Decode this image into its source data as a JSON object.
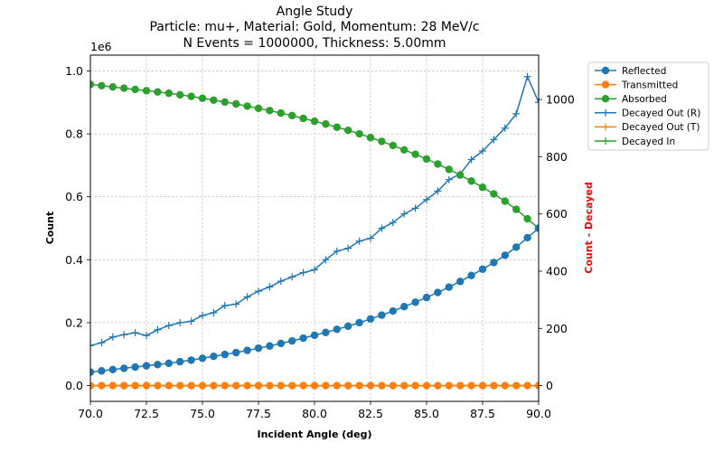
{
  "chart_data": {
    "type": "scatter",
    "title_lines": [
      "Angle Study",
      "Particle: mu+, Material: Gold, Momentum: 28 MeV/c",
      "N Events = 1000000, Thickness: 5.00mm"
    ],
    "xlabel": "Incident Angle (deg)",
    "ylabel": "Count",
    "ylabel_right": "Count - Decayed",
    "ylabel_right_color": "#ff0000",
    "y_offset_label": "1e6",
    "xlim": [
      70.0,
      90.0
    ],
    "ylim": [
      -0.05,
      1.05
    ],
    "ylim_right": [
      -55,
      1155
    ],
    "x_ticks": [
      "70.0",
      "72.5",
      "75.0",
      "77.5",
      "80.0",
      "82.5",
      "85.0",
      "87.5",
      "90.0"
    ],
    "y_ticks": [
      "0.0",
      "0.2",
      "0.4",
      "0.6",
      "0.8",
      "1.0"
    ],
    "y_right_ticks": [
      "0",
      "200",
      "400",
      "600",
      "800",
      "1000"
    ],
    "grid": true,
    "legend_position": "outside-top-right",
    "legend": [
      {
        "label": "Reflected",
        "color": "#1f77b4",
        "marker": "circle"
      },
      {
        "label": "Transmitted",
        "color": "#ff7f0e",
        "marker": "circle"
      },
      {
        "label": "Absorbed",
        "color": "#2ca02c",
        "marker": "circle"
      },
      {
        "label": "Decayed Out (R)",
        "color": "#1f77b4",
        "marker": "plus"
      },
      {
        "label": "Decayed Out (T)",
        "color": "#ff7f0e",
        "marker": "plus"
      },
      {
        "label": "Decayed In",
        "color": "#2ca02c",
        "marker": "plus"
      }
    ],
    "x": [
      70.0,
      70.5,
      71.0,
      71.5,
      72.0,
      72.5,
      73.0,
      73.5,
      74.0,
      74.5,
      75.0,
      75.5,
      76.0,
      76.5,
      77.0,
      77.5,
      78.0,
      78.5,
      79.0,
      79.5,
      80.0,
      80.5,
      81.0,
      81.5,
      82.0,
      82.5,
      83.0,
      83.5,
      84.0,
      84.5,
      85.0,
      85.5,
      86.0,
      86.5,
      87.0,
      87.5,
      88.0,
      88.5,
      89.0,
      89.5,
      90.0
    ],
    "series": [
      {
        "name": "Reflected",
        "axis": "left",
        "color": "#1f77b4",
        "marker": "circle",
        "values": [
          0.043,
          0.047,
          0.051,
          0.055,
          0.059,
          0.063,
          0.067,
          0.071,
          0.076,
          0.081,
          0.087,
          0.093,
          0.099,
          0.105,
          0.112,
          0.119,
          0.126,
          0.134,
          0.142,
          0.151,
          0.16,
          0.169,
          0.179,
          0.189,
          0.2,
          0.212,
          0.224,
          0.237,
          0.251,
          0.265,
          0.28,
          0.296,
          0.313,
          0.331,
          0.35,
          0.37,
          0.391,
          0.414,
          0.44,
          0.47,
          0.5
        ]
      },
      {
        "name": "Transmitted",
        "axis": "left",
        "color": "#ff7f0e",
        "marker": "circle",
        "values": [
          0.0,
          0.0,
          0.0,
          0.0,
          0.0,
          0.0,
          0.0,
          0.0,
          0.0,
          0.0,
          0.0,
          0.0,
          0.0,
          0.0,
          0.0,
          0.0,
          0.0,
          0.0,
          0.0,
          0.0,
          0.0,
          0.0,
          0.0,
          0.0,
          0.0,
          0.0,
          0.0,
          0.0,
          0.0,
          0.0,
          0.0,
          0.0,
          0.0,
          0.0,
          0.0,
          0.0,
          0.0,
          0.0,
          0.0,
          0.0,
          0.0
        ]
      },
      {
        "name": "Absorbed",
        "axis": "left",
        "color": "#2ca02c",
        "marker": "circle",
        "values": [
          0.957,
          0.953,
          0.949,
          0.945,
          0.941,
          0.937,
          0.933,
          0.929,
          0.924,
          0.919,
          0.913,
          0.907,
          0.901,
          0.895,
          0.888,
          0.881,
          0.874,
          0.866,
          0.858,
          0.849,
          0.84,
          0.831,
          0.821,
          0.811,
          0.8,
          0.788,
          0.776,
          0.763,
          0.749,
          0.735,
          0.72,
          0.704,
          0.687,
          0.669,
          0.65,
          0.63,
          0.609,
          0.586,
          0.56,
          0.53,
          0.5
        ]
      },
      {
        "name": "Decayed Out (R)",
        "axis": "right",
        "color": "#1f77b4",
        "marker": "plus",
        "values": [
          140,
          150,
          170,
          178,
          185,
          175,
          195,
          210,
          220,
          225,
          245,
          255,
          280,
          285,
          310,
          330,
          345,
          365,
          380,
          395,
          405,
          440,
          470,
          480,
          505,
          515,
          550,
          570,
          600,
          620,
          650,
          680,
          720,
          740,
          790,
          820,
          860,
          900,
          950,
          1080,
          990
        ]
      },
      {
        "name": "Decayed Out (T)",
        "axis": "right",
        "color": "#ff7f0e",
        "marker": "plus",
        "values": [
          0,
          0,
          0,
          0,
          0,
          0,
          0,
          0,
          0,
          0,
          0,
          0,
          0,
          0,
          0,
          0,
          0,
          0,
          0,
          0,
          0,
          0,
          0,
          0,
          0,
          0,
          0,
          0,
          0,
          0,
          0,
          0,
          0,
          0,
          0,
          0,
          0,
          0,
          0,
          0,
          0
        ]
      },
      {
        "name": "Decayed In",
        "axis": "right",
        "color": "#2ca02c",
        "marker": "plus",
        "values": [
          0,
          0,
          0,
          0,
          0,
          0,
          0,
          0,
          0,
          0,
          0,
          0,
          0,
          0,
          0,
          0,
          0,
          0,
          0,
          0,
          0,
          0,
          0,
          0,
          0,
          0,
          0,
          0,
          0,
          0,
          0,
          0,
          0,
          0,
          0,
          0,
          0,
          0,
          0,
          0,
          0
        ]
      }
    ]
  }
}
